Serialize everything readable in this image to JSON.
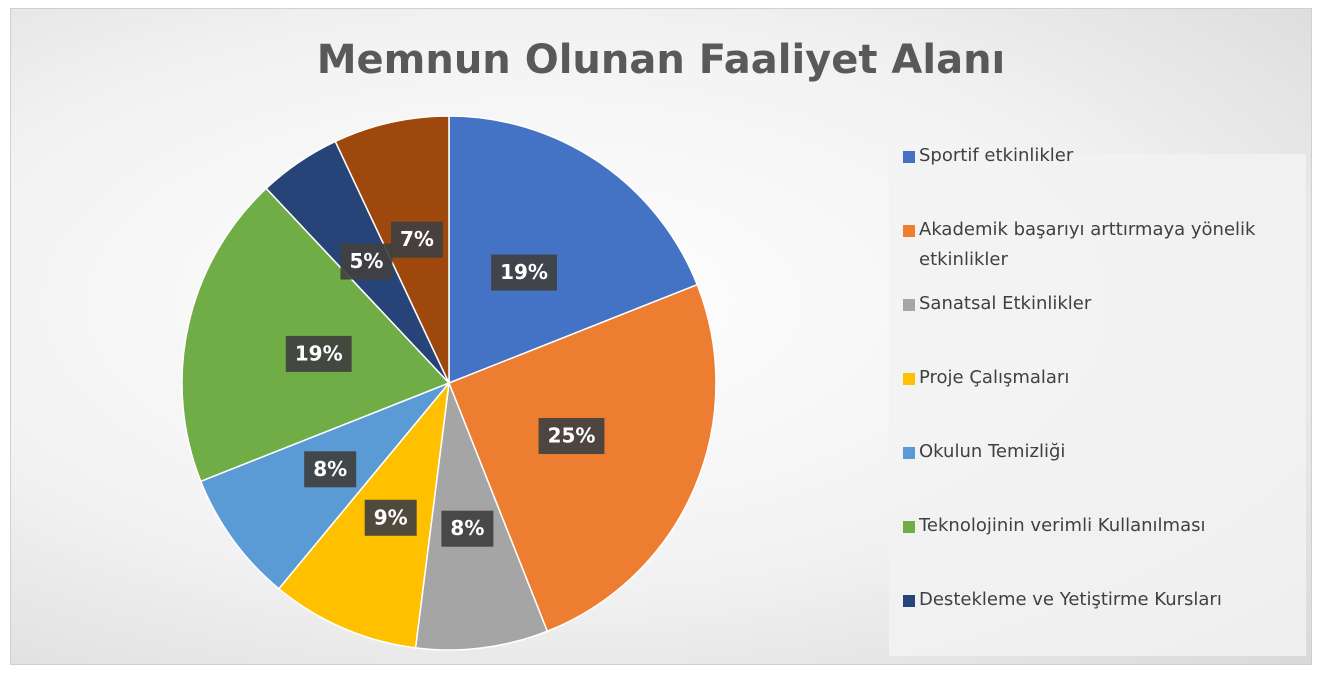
{
  "chart_data": {
    "type": "pie",
    "title": "Memnun Olunan Faaliyet Alanı",
    "categories": [
      "Sportif etkinlikler",
      "Akademik başarıyı arttırmaya yönelik etkinlikler",
      "Sanatsal Etkinlikler",
      "Proje Çalışmaları",
      "Okulun Temizliği",
      "Teknolojinin verimli Kullanılması",
      "Destekleme ve Yetiştirme Kursları",
      null
    ],
    "values": [
      19,
      25,
      8,
      9,
      8,
      19,
      5,
      7
    ],
    "value_labels": [
      "19%",
      "25%",
      "8%",
      "9%",
      "8%",
      "19%",
      "5%",
      "7%"
    ],
    "colors": [
      "#4472c4",
      "#ed7d31",
      "#a5a5a5",
      "#ffc000",
      "#5b9bd5",
      "#70ad47",
      "#264478",
      "#9e480e"
    ],
    "legend": "right"
  }
}
